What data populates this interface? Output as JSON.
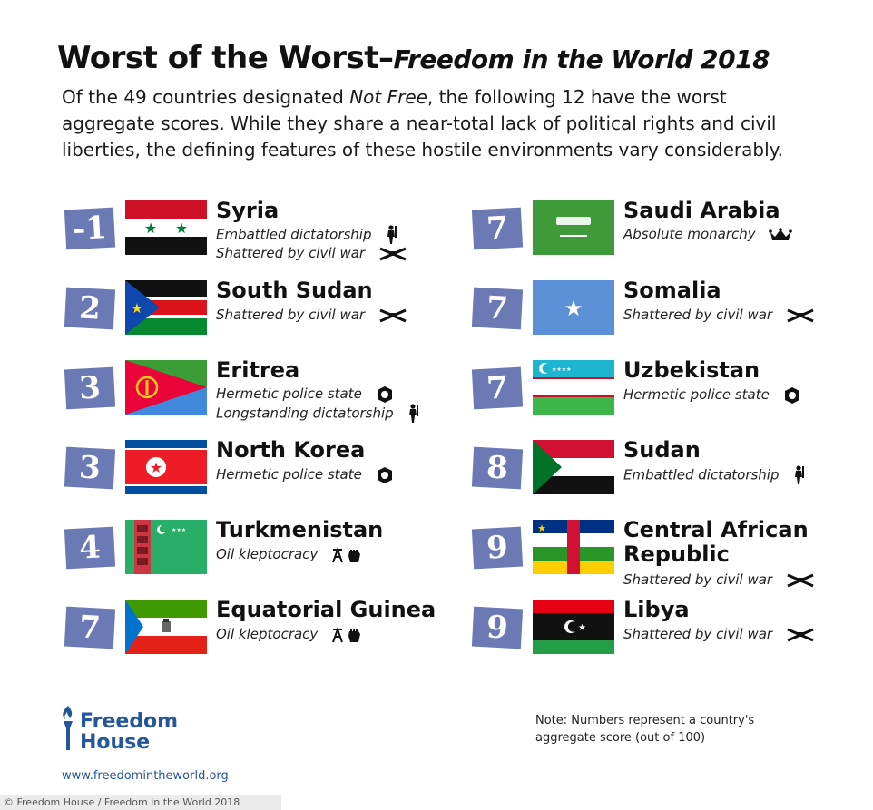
{
  "header": {
    "title_main": "Worst of the Worst",
    "title_dash": "–",
    "title_sub": "Freedom in the World 2018",
    "intro_pre": "Of the 49 countries designated ",
    "intro_em": "Not Free",
    "intro_post": ", the following 12 have the worst aggregate scores. While they share a near-total lack of political rights and civil liberties, the defining features of these hostile environments vary considerably."
  },
  "countries": [
    {
      "score": "-1",
      "name": "Syria",
      "features": [
        "Embattled dictatorship",
        "Shattered by civil war"
      ],
      "icons": [
        "soldier-icon",
        "crossed-rifles-icon"
      ]
    },
    {
      "score": "2",
      "name": "South Sudan",
      "features": [
        "Shattered by civil war"
      ],
      "icons": [
        "crossed-rifles-icon"
      ]
    },
    {
      "score": "3",
      "name": "Eritrea",
      "features": [
        "Hermetic police state",
        "Longstanding dictatorship"
      ],
      "icons": [
        "police-badge-icon",
        "soldier-icon"
      ]
    },
    {
      "score": "3",
      "name": "North Korea",
      "features": [
        "Hermetic police state"
      ],
      "icons": [
        "police-badge-icon"
      ]
    },
    {
      "score": "4",
      "name": "Turkmenistan",
      "features": [
        "Oil kleptocracy"
      ],
      "icons": [
        "oil-derrick-icon"
      ]
    },
    {
      "score": "7",
      "name": "Equatorial Guinea",
      "features": [
        "Oil kleptocracy"
      ],
      "icons": [
        "oil-derrick-icon"
      ]
    },
    {
      "score": "7",
      "name": "Saudi Arabia",
      "features": [
        "Absolute monarchy"
      ],
      "icons": [
        "crown-icon"
      ]
    },
    {
      "score": "7",
      "name": "Somalia",
      "features": [
        "Shattered by civil war"
      ],
      "icons": [
        "crossed-rifles-icon"
      ]
    },
    {
      "score": "7",
      "name": "Uzbekistan",
      "features": [
        "Hermetic police state"
      ],
      "icons": [
        "police-badge-icon"
      ]
    },
    {
      "score": "8",
      "name": "Sudan",
      "features": [
        "Embattled dictatorship"
      ],
      "icons": [
        "soldier-icon"
      ]
    },
    {
      "score": "9",
      "name": "Central African",
      "name_line2": "Republic",
      "features": [
        "Shattered by civil war"
      ],
      "icons": [
        "crossed-rifles-icon"
      ]
    },
    {
      "score": "9",
      "name": "Libya",
      "features": [
        "Shattered by civil war"
      ],
      "icons": [
        "crossed-rifles-icon"
      ]
    }
  ],
  "footer": {
    "logo_line1": "Freedom",
    "logo_line2": "House",
    "url": "www.freedomintheworld.org",
    "note": "Note: Numbers represent a country's aggregate score (out of 100)",
    "credit": "© Freedom House / Freedom in the World 2018"
  },
  "colors": {
    "score_box": "#6b7ab5",
    "brand_blue": "#24569b"
  }
}
